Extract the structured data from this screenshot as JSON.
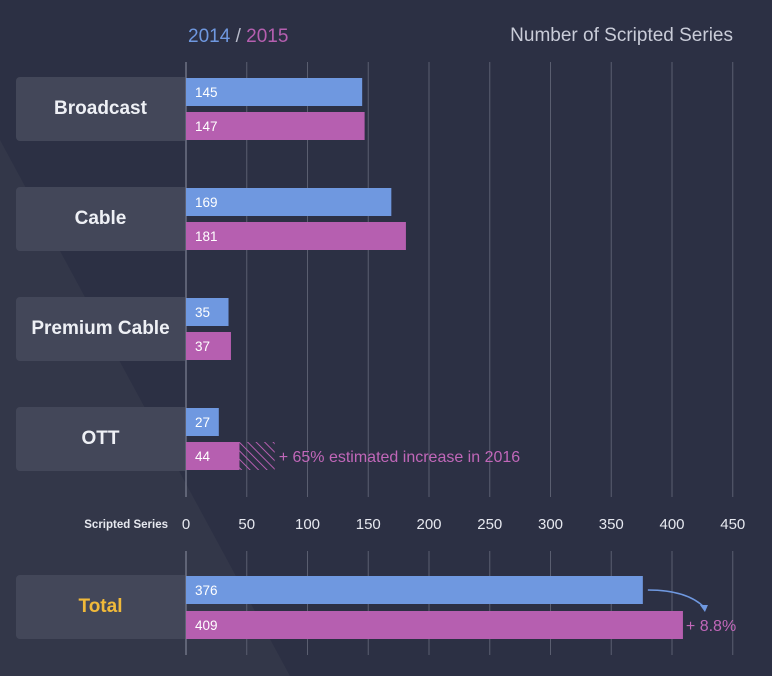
{
  "colors": {
    "background": "#2c3044",
    "label_box": "#434759",
    "series_2014": "#6f98e0",
    "series_2015": "#b65fb0",
    "total_label": "#f0b93a",
    "grid": "#5a5e70"
  },
  "legend": {
    "year1": "2014",
    "separator": "/",
    "year2": "2015"
  },
  "title": "Number of Scripted Series",
  "chart_data": [
    {
      "type": "bar",
      "orientation": "horizontal",
      "title": "Number of Scripted Series",
      "xlabel": "Scripted Series",
      "xlim": [
        0,
        450
      ],
      "x_ticks": [
        0,
        50,
        100,
        150,
        200,
        250,
        300,
        350,
        400,
        450
      ],
      "grid": true,
      "categories": [
        "Broadcast",
        "Cable",
        "Premium Cable",
        "OTT"
      ],
      "series": [
        {
          "name": "2014",
          "values": [
            145,
            169,
            35,
            27
          ]
        },
        {
          "name": "2015",
          "values": [
            147,
            181,
            37,
            44
          ]
        }
      ],
      "annotations": [
        {
          "category": "OTT",
          "series": "2015",
          "estimated_value": 73,
          "text": "+ 65% estimated increase in 2016"
        }
      ]
    },
    {
      "type": "bar",
      "orientation": "horizontal",
      "xlim": [
        0,
        450
      ],
      "grid": true,
      "categories": [
        "Total"
      ],
      "series": [
        {
          "name": "2014",
          "values": [
            376
          ]
        },
        {
          "name": "2015",
          "values": [
            409
          ]
        }
      ],
      "annotations": [
        {
          "category": "Total",
          "text": "+ 8.8%"
        }
      ]
    }
  ]
}
